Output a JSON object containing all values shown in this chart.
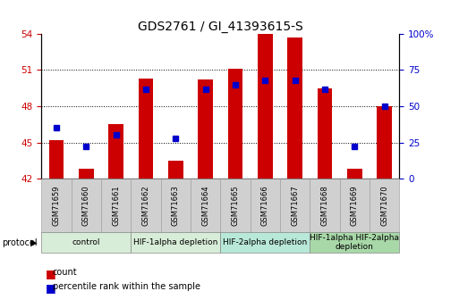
{
  "title": "GDS2761 / GI_41393615-S",
  "samples": [
    "GSM71659",
    "GSM71660",
    "GSM71661",
    "GSM71662",
    "GSM71663",
    "GSM71664",
    "GSM71665",
    "GSM71666",
    "GSM71667",
    "GSM71668",
    "GSM71669",
    "GSM71670"
  ],
  "count_values": [
    45.2,
    42.8,
    46.5,
    50.3,
    43.5,
    50.2,
    51.1,
    54.0,
    53.7,
    49.5,
    42.8,
    48.0
  ],
  "percentile_values": [
    35,
    22,
    30,
    62,
    28,
    62,
    65,
    68,
    68,
    62,
    22,
    50
  ],
  "ylim_left": [
    42,
    54
  ],
  "ylim_right": [
    0,
    100
  ],
  "yticks_left": [
    42,
    45,
    48,
    51,
    54
  ],
  "yticks_right": [
    0,
    25,
    50,
    75,
    100
  ],
  "ytick_labels_right": [
    "0",
    "25",
    "50",
    "75",
    "100%"
  ],
  "bar_color": "#cc0000",
  "dot_color": "#0000cc",
  "bar_width": 0.5,
  "bar_bottom": 42,
  "groups": [
    {
      "label": "control",
      "start": 0,
      "end": 2,
      "color": "#d8edd8"
    },
    {
      "label": "HIF-1alpha depletion",
      "start": 3,
      "end": 5,
      "color": "#d8edd8"
    },
    {
      "label": "HIF-2alpha depletion",
      "start": 6,
      "end": 8,
      "color": "#b8e8d8"
    },
    {
      "label": "HIF-1alpha HIF-2alpha\ndepletion",
      "start": 9,
      "end": 11,
      "color": "#a8d8a8"
    }
  ],
  "legend_count_label": "count",
  "legend_pct_label": "percentile rank within the sample",
  "bg_color": "#ffffff",
  "title_fontsize": 10,
  "tick_fontsize": 7.5,
  "sample_fontsize": 6,
  "group_fontsize": 6.5
}
